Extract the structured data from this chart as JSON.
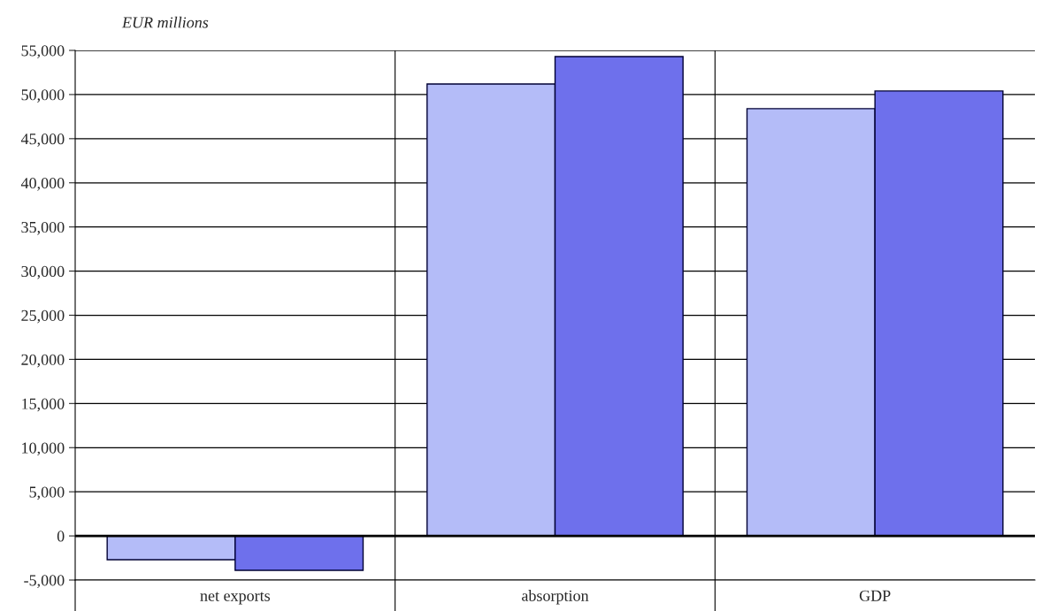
{
  "chart_data": {
    "type": "bar",
    "ylabel": "EUR millions",
    "categories": [
      "net exports",
      "absorption",
      "GDP"
    ],
    "series": [
      {
        "color": "#b4bcf8",
        "values": [
          -2700,
          51200,
          48400
        ]
      },
      {
        "color": "#6e70ec",
        "values": [
          -3900,
          54300,
          50400
        ]
      }
    ],
    "ylim": [
      -5000,
      55000
    ],
    "yticks": [
      {
        "value": -5000,
        "label": "-5,000"
      },
      {
        "value": 0,
        "label": "0"
      },
      {
        "value": 5000,
        "label": "5,000"
      },
      {
        "value": 10000,
        "label": "10,000"
      },
      {
        "value": 15000,
        "label": "15,000"
      },
      {
        "value": 20000,
        "label": "20,000"
      },
      {
        "value": 25000,
        "label": "25,000"
      },
      {
        "value": 30000,
        "label": "30,000"
      },
      {
        "value": 35000,
        "label": "35,000"
      },
      {
        "value": 40000,
        "label": "40,000"
      },
      {
        "value": 45000,
        "label": "45,000"
      },
      {
        "value": 50000,
        "label": "50,000"
      },
      {
        "value": 55000,
        "label": "55,000"
      }
    ],
    "grid": "y"
  }
}
